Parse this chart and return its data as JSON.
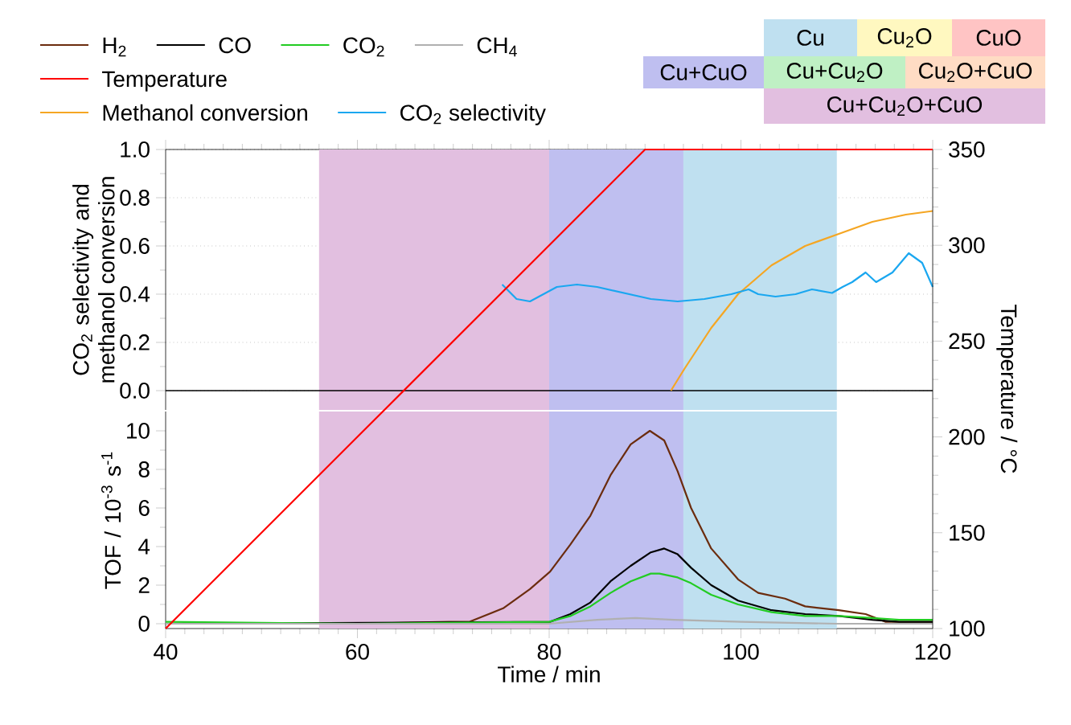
{
  "chart_data": [
    {
      "type": "line",
      "ylabel": "CO$_{2}$ selectivity and methanol conversion",
      "xlim": [
        40,
        120
      ],
      "xticks": [
        40,
        60,
        80,
        100,
        120
      ],
      "ylim": [
        -0.08,
        1.0
      ],
      "yticks": [
        {
          "value": 0,
          "label": "0.0"
        },
        {
          "value": 0.2,
          "label": "0.2"
        },
        {
          "value": 0.4,
          "label": "0.4"
        },
        {
          "value": 0.6,
          "label": "0.6"
        },
        {
          "value": 0.8,
          "label": "0.8"
        },
        {
          "value": 1,
          "label": "1.0"
        }
      ],
      "tick_labels": "y",
      "grid": "y",
      "legend": "top left",
      "ref_lines": [
        {
          "axis": "y",
          "value": 0,
          "color": "#000000"
        }
      ],
      "bands": [
        {
          "axis": "x",
          "from": 56,
          "to": 80,
          "color": "#e2bfe0"
        },
        {
          "axis": "x",
          "from": 80,
          "to": 94,
          "color": "#bfbff0"
        },
        {
          "axis": "x",
          "from": 94,
          "to": 110,
          "color": "#bfe0f0"
        }
      ],
      "series": [
        {
          "name": "Methanol conversion",
          "color": "#f5a623",
          "x": [
            92.7,
            94.1,
            96.9,
            99.7,
            103.2,
            106.7,
            110.2,
            113.7,
            117.2,
            120
          ],
          "values": [
            0.0,
            0.09,
            0.26,
            0.4,
            0.52,
            0.6,
            0.65,
            0.7,
            0.73,
            0.745
          ]
        },
        {
          "name": "CO$_{2}$ selectivity",
          "color": "#1aa7f0",
          "x": [
            75.1,
            76.6,
            78.0,
            80.8,
            82.9,
            85.0,
            87.8,
            90.6,
            93.4,
            96.2,
            99.0,
            100.8,
            101.8,
            103.6,
            105.7,
            107.4,
            109.5,
            110.6,
            111.6,
            113.0,
            114.1,
            115.8,
            117.5,
            118.9,
            120
          ],
          "values": [
            0.44,
            0.38,
            0.37,
            0.43,
            0.44,
            0.43,
            0.405,
            0.38,
            0.37,
            0.38,
            0.4,
            0.42,
            0.4,
            0.39,
            0.4,
            0.42,
            0.405,
            0.43,
            0.45,
            0.49,
            0.45,
            0.49,
            0.57,
            0.53,
            0.43
          ]
        }
      ]
    },
    {
      "type": "line",
      "xlabel": "Time / min",
      "ylabel": "TOF / 10$^{-3}$ s$^{-1}$",
      "y2label": "Temperature / °C",
      "xlim": [
        40,
        120
      ],
      "xticks": [
        40,
        60,
        80,
        100,
        120
      ],
      "ylim": [
        -0.25,
        11
      ],
      "yticks": [
        0,
        2,
        4,
        6,
        8,
        10
      ],
      "y2lim": [
        100,
        350
      ],
      "y2ticks": [
        100,
        150,
        200,
        250,
        300,
        350
      ],
      "legend": "top left",
      "bands": [
        {
          "axis": "x",
          "from": 56,
          "to": 80,
          "color": "#e2bfe0"
        },
        {
          "axis": "x",
          "from": 80,
          "to": 94,
          "color": "#bfbff0"
        },
        {
          "axis": "x",
          "from": 94,
          "to": 110,
          "color": "#bfe0f0"
        }
      ],
      "series": [
        {
          "name": "H$_{2}$",
          "color": "#6b2c0e",
          "x": [
            40,
            60,
            69.6,
            71.7,
            75.2,
            78.0,
            80.1,
            82.2,
            84.3,
            86.4,
            88.5,
            90.5,
            92.0,
            93.4,
            94.8,
            96.9,
            99.7,
            101.8,
            104.6,
            106.7,
            110.2,
            113.0,
            115.1,
            116.5,
            120
          ],
          "values": [
            0.0,
            0.0,
            0.1,
            0.1,
            0.8,
            1.8,
            2.7,
            4.1,
            5.6,
            7.7,
            9.3,
            10.0,
            9.5,
            7.9,
            6.0,
            3.9,
            2.3,
            1.6,
            1.3,
            0.9,
            0.7,
            0.5,
            0.1,
            0.1,
            0.1
          ]
        },
        {
          "name": "CO",
          "color": "#000000",
          "x": [
            40,
            60,
            80.1,
            82.2,
            84.3,
            86.4,
            88.5,
            90.6,
            92.0,
            93.4,
            94.8,
            96.9,
            99.7,
            103.2,
            106.7,
            110.2,
            113.7,
            116.5,
            120
          ],
          "values": [
            0.0,
            null,
            0.1,
            0.5,
            1.1,
            2.2,
            3.0,
            3.7,
            3.9,
            3.6,
            2.9,
            2.0,
            1.2,
            0.7,
            0.5,
            0.4,
            0.2,
            0.1,
            0.1
          ]
        },
        {
          "name": "CO$_{2}$",
          "color": "#22cc22",
          "x": [
            40,
            60,
            80,
            82.2,
            84.3,
            86.4,
            88.5,
            90.6,
            91.5,
            93.4,
            94.8,
            96.9,
            99.7,
            103.2,
            106.7,
            110.2,
            113.7,
            116.5,
            120
          ],
          "values": [
            0.1,
            0.0,
            0.1,
            0.4,
            0.9,
            1.6,
            2.2,
            2.6,
            2.6,
            2.4,
            2.1,
            1.5,
            1.0,
            0.6,
            0.4,
            0.4,
            0.3,
            0.2,
            0.2
          ]
        },
        {
          "name": "CH$_{4}$",
          "color": "#b0b0b0",
          "x": [
            40,
            80,
            85,
            89,
            93,
            100,
            110,
            120
          ],
          "values": [
            0.0,
            0.0,
            0.2,
            0.3,
            0.2,
            0.1,
            0.0,
            0.0
          ]
        },
        {
          "name": "Temperature",
          "color": "#ff0000",
          "axis": "y2",
          "x": [
            40,
            60,
            80,
            90,
            120
          ],
          "values": [
            100,
            200,
            300,
            350,
            350
          ]
        }
      ]
    },
    {
      "type": "other",
      "categories": [
        "Cu",
        "Cu$_{2}$O",
        "CuO",
        "Cu+CuO",
        "Cu+Cu$_{2}$O",
        "Cu$_{2}$O+CuO",
        "Cu+Cu$_{2}$O+CuO"
      ],
      "colors": [
        "#bfe0f0",
        "#fff8c0",
        "#ffc4c4",
        "#bfbff0",
        "#bff0c4",
        "#ffdcc4",
        "#e2bfe0"
      ]
    }
  ]
}
